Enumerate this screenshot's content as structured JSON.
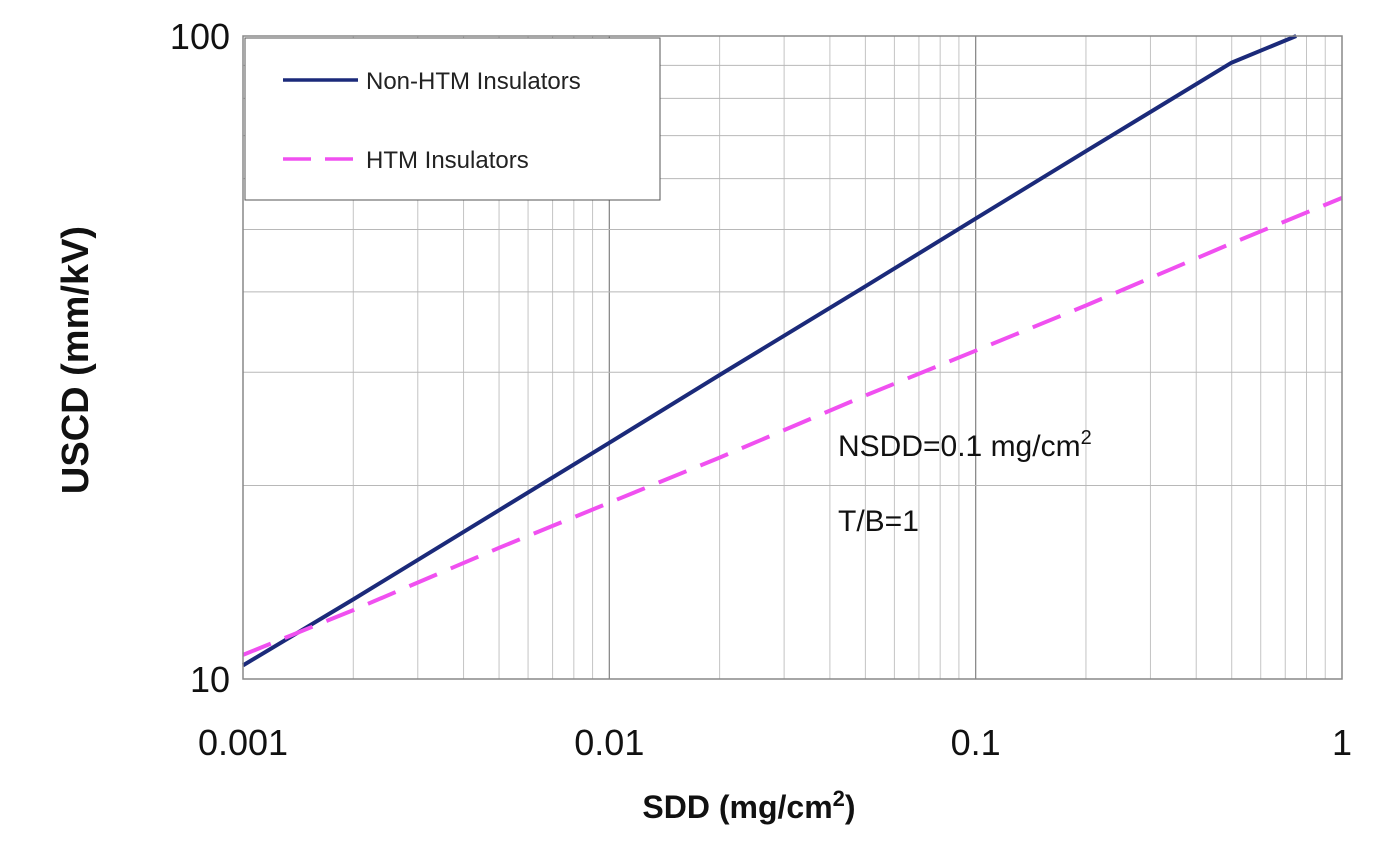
{
  "chart_data": {
    "type": "line",
    "title": "",
    "xlabel": "SDD (mg/cm",
    "xlabel_sup": "2",
    "xlabel_end": ")",
    "ylabel": "USCD (mm/kV)",
    "x_scale": "log",
    "y_scale": "log",
    "xlim": [
      0.001,
      1
    ],
    "ylim": [
      10,
      100
    ],
    "x_ticks": [
      {
        "value": 0.001,
        "label": "0.001"
      },
      {
        "value": 0.01,
        "label": "0.01"
      },
      {
        "value": 0.1,
        "label": "0.1"
      },
      {
        "value": 1,
        "label": "1"
      }
    ],
    "y_ticks": [
      {
        "value": 10,
        "label": "10"
      },
      {
        "value": 100,
        "label": "100"
      }
    ],
    "grid": true,
    "legend_position": "top-left",
    "series": [
      {
        "name": "Non-HTM Insulators",
        "color": "#1b2a7a",
        "dash": "solid",
        "x": [
          0.001,
          0.002,
          0.005,
          0.01,
          0.02,
          0.05,
          0.1,
          0.2,
          0.5,
          0.75
        ],
        "y": [
          10.5,
          13.3,
          18.3,
          23.3,
          29.7,
          40.8,
          52.0,
          66.2,
          90.9,
          100.0
        ]
      },
      {
        "name": "HTM Insulators",
        "color": "#f050f0",
        "dash": "dashed",
        "x": [
          0.001,
          0.002,
          0.005,
          0.01,
          0.02,
          0.05,
          0.1,
          0.2,
          0.5,
          1
        ],
        "y": [
          10.9,
          12.8,
          16.0,
          18.8,
          22.1,
          27.6,
          32.4,
          38.1,
          47.6,
          56.0
        ]
      }
    ],
    "annotations": [
      {
        "text": "NSDD=0.1 mg/cm",
        "sup": "2"
      },
      {
        "text": "T/B=1"
      }
    ]
  }
}
